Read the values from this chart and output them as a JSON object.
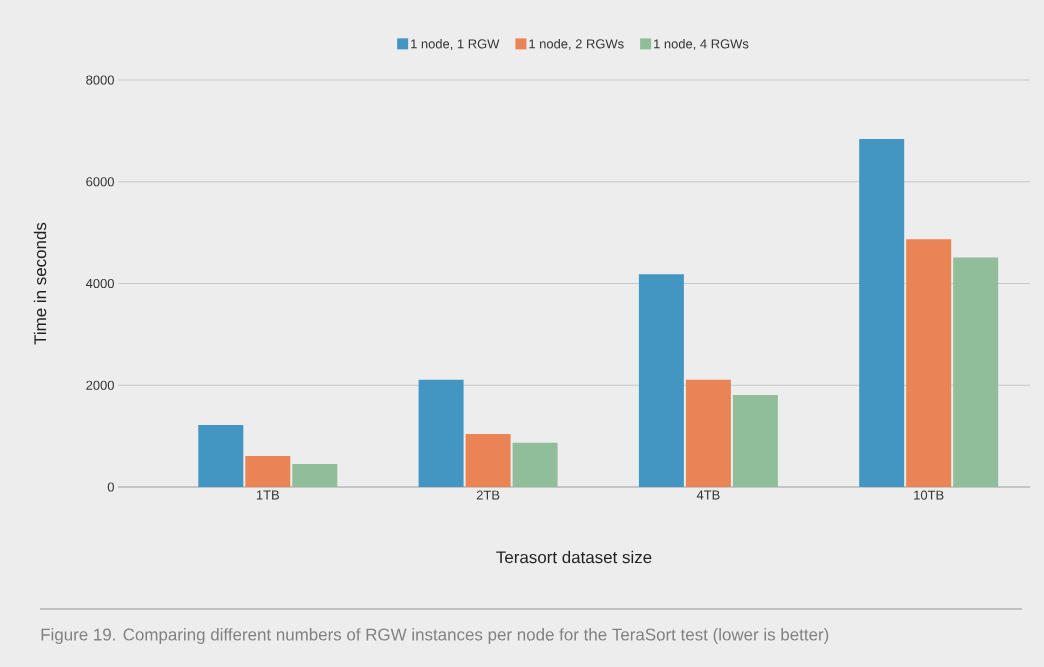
{
  "chart_data": {
    "type": "bar",
    "xlabel": "Terasort dataset size",
    "ylabel": "Time in seconds",
    "categories": [
      "1TB",
      "2TB",
      "4TB",
      "10TB"
    ],
    "series": [
      {
        "name": "1 node, 1 RGW",
        "color": "#4496c2",
        "values": [
          1220,
          2110,
          4180,
          6840
        ]
      },
      {
        "name": "1 node, 2 RGWs",
        "color": "#ea8455",
        "values": [
          610,
          1040,
          2110,
          4870
        ]
      },
      {
        "name": "1 node, 4 RGWs",
        "color": "#90be9b",
        "values": [
          450,
          870,
          1810,
          4510
        ]
      }
    ],
    "ylim": [
      0,
      8000
    ],
    "yticks": [
      0,
      2000,
      4000,
      6000,
      8000
    ],
    "grid": "y",
    "legend": "top",
    "annotations": [
      "Figure 19. Comparing different numbers of RGW instances per node for the TeraSort test (lower is better)"
    ]
  }
}
